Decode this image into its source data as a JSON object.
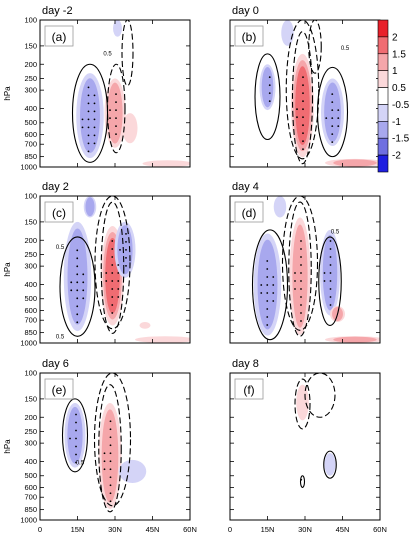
{
  "chart_data": {
    "type": "heatmap",
    "ylabel": "hPa",
    "xticks": [
      "0",
      "15N",
      "30N",
      "45N",
      "60N"
    ],
    "yticks": [
      "100",
      "150",
      "200",
      "250",
      "300",
      "400",
      "500",
      "600",
      "700",
      "850",
      "1000"
    ],
    "colorbar": {
      "levels": [
        "2",
        "1.5",
        "1",
        "0.5",
        "-0.5",
        "-1",
        "-1.5",
        "-2"
      ],
      "colors": [
        "#e8202a",
        "#f06c72",
        "#f5a6aa",
        "#fbd8da",
        "#ffffff",
        "#d4d4f7",
        "#a8a8ee",
        "#6f6fe0",
        "#1f1fe0"
      ]
    },
    "contour_label": "0.5",
    "panels": [
      {
        "title": "day -2",
        "label": "(a)",
        "blobs": [
          {
            "lat": 20,
            "p0": 230,
            "p1": 870,
            "w": 5.5,
            "v": -1.2
          },
          {
            "lat": 30,
            "p0": 250,
            "p1": 740,
            "w": 4.2,
            "v": 1.3
          },
          {
            "lat": 36,
            "p0": 430,
            "p1": 690,
            "w": 3.0,
            "v": 0.5
          },
          {
            "lat": 31,
            "p0": 100,
            "p1": 130,
            "w": 1.8,
            "v": -0.8
          },
          {
            "lat": 51,
            "p0": 900,
            "p1": 1000,
            "w": 10,
            "v": 0.6
          }
        ],
        "solid": [
          {
            "lat": 20,
            "p0": 200,
            "p1": 930,
            "w": 7
          }
        ],
        "dashed": [
          {
            "lat": 30.5,
            "p0": 200,
            "p1": 800,
            "w": 3.5
          },
          {
            "lat": 35,
            "p0": 100,
            "p1": 280,
            "w": 2.2
          }
        ],
        "labels": [
          {
            "text": "0.5",
            "lat": 27,
            "p": 175
          }
        ],
        "dots": [
          {
            "lat": 20,
            "p0": 270,
            "p1": 850,
            "w": 3
          },
          {
            "lat": 30,
            "p0": 300,
            "p1": 640,
            "w": 2
          }
        ]
      },
      {
        "title": "day 0",
        "label": "(b)",
        "blobs": [
          {
            "lat": 15,
            "p0": 200,
            "p1": 410,
            "w": 3.2,
            "v": -1.3
          },
          {
            "lat": 29,
            "p0": 170,
            "p1": 860,
            "w": 4.6,
            "v": 1.8
          },
          {
            "lat": 41,
            "p0": 250,
            "p1": 720,
            "w": 4.6,
            "v": -1.3
          },
          {
            "lat": 23,
            "p0": 100,
            "p1": 150,
            "w": 2.5,
            "v": -0.8
          },
          {
            "lat": 50,
            "p0": 880,
            "p1": 1000,
            "w": 12,
            "v": 1.0
          },
          {
            "lat": 54,
            "p0": 120,
            "p1": 160,
            "w": 2.5,
            "v": 0.4
          }
        ],
        "solid": [
          {
            "lat": 15,
            "p0": 170,
            "p1": 650,
            "w": 5
          },
          {
            "lat": 41,
            "p0": 210,
            "p1": 850,
            "w": 6
          }
        ],
        "dashed": [
          {
            "lat": 29,
            "p0": 120,
            "p1": 950,
            "w": 4
          },
          {
            "lat": 29,
            "p0": 100,
            "p1": 880,
            "w": 6.5
          },
          {
            "lat": 34,
            "p0": 100,
            "p1": 230,
            "w": 2.5
          }
        ],
        "labels": [
          {
            "text": "0.5",
            "lat": 46,
            "p": 160
          }
        ],
        "dots": [
          {
            "lat": 15,
            "p0": 230,
            "p1": 380,
            "w": 1.5
          },
          {
            "lat": 29,
            "p0": 230,
            "p1": 850,
            "w": 2.2
          },
          {
            "lat": 41,
            "p0": 300,
            "p1": 700,
            "w": 2.5
          }
        ]
      },
      {
        "title": "day 2",
        "label": "(c)",
        "blobs": [
          {
            "lat": 15,
            "p0": 150,
            "p1": 830,
            "w": 5.5,
            "v": -1.4
          },
          {
            "lat": 29,
            "p0": 160,
            "p1": 760,
            "w": 4.6,
            "v": 1.6
          },
          {
            "lat": 34,
            "p0": 150,
            "p1": 360,
            "w": 4.2,
            "v": -1.2
          },
          {
            "lat": 20,
            "p0": 100,
            "p1": 140,
            "w": 2.5,
            "v": -1.0
          },
          {
            "lat": 45,
            "p0": 140,
            "p1": 220,
            "w": 3.5,
            "v": 0.4
          },
          {
            "lat": 42,
            "p0": 720,
            "p1": 800,
            "w": 2.2,
            "v": 0.5
          },
          {
            "lat": 50,
            "p0": 900,
            "p1": 1000,
            "w": 12,
            "v": 0.7
          }
        ],
        "solid": [
          {
            "lat": 15,
            "p0": 190,
            "p1": 900,
            "w": 7
          }
        ],
        "dashed": [
          {
            "lat": 29,
            "p0": 110,
            "p1": 860,
            "w": 4.5
          },
          {
            "lat": 29,
            "p0": 100,
            "p1": 800,
            "w": 7
          }
        ],
        "labels": [
          {
            "text": "0.5",
            "lat": 8,
            "p": 230
          },
          {
            "text": "0.5",
            "lat": 8,
            "p": 930
          }
        ],
        "dots": [
          {
            "lat": 15,
            "p0": 220,
            "p1": 760,
            "w": 2.5
          },
          {
            "lat": 29,
            "p0": 190,
            "p1": 700,
            "w": 2.5
          },
          {
            "lat": 34,
            "p0": 170,
            "p1": 330,
            "w": 2
          }
        ]
      },
      {
        "title": "day 4",
        "label": "(d)",
        "blobs": [
          {
            "lat": 15,
            "p0": 180,
            "p1": 890,
            "w": 5.5,
            "v": -1.3
          },
          {
            "lat": 28,
            "p0": 140,
            "p1": 880,
            "w": 4.2,
            "v": 1.4
          },
          {
            "lat": 40,
            "p0": 170,
            "p1": 650,
            "w": 4.0,
            "v": -1.2
          },
          {
            "lat": 20,
            "p0": 100,
            "p1": 140,
            "w": 2.5,
            "v": -0.8
          },
          {
            "lat": 43,
            "p0": 560,
            "p1": 720,
            "w": 3.0,
            "v": 1.0
          },
          {
            "lat": 50,
            "p0": 900,
            "p1": 1000,
            "w": 12,
            "v": 1.0
          }
        ],
        "solid": [
          {
            "lat": 16,
            "p0": 170,
            "p1": 950,
            "w": 7
          },
          {
            "lat": 40,
            "p0": 190,
            "p1": 760,
            "w": 4.5
          }
        ],
        "dashed": [
          {
            "lat": 28,
            "p0": 110,
            "p1": 900,
            "w": 4.5
          },
          {
            "lat": 28,
            "p0": 100,
            "p1": 820,
            "w": 7
          }
        ],
        "labels": [
          {
            "text": "0.5",
            "lat": 42,
            "p": 180
          }
        ],
        "dots": [
          {
            "lat": 15,
            "p0": 260,
            "p1": 790,
            "w": 2.5
          },
          {
            "lat": 28,
            "p0": 190,
            "p1": 800,
            "w": 2
          },
          {
            "lat": 40,
            "p0": 190,
            "p1": 620,
            "w": 2.2
          }
        ]
      },
      {
        "title": "day 6",
        "label": "(e)",
        "blobs": [
          {
            "lat": 14,
            "p0": 160,
            "p1": 440,
            "w": 4.2,
            "v": -1.2
          },
          {
            "lat": 28,
            "p0": 160,
            "p1": 840,
            "w": 4.6,
            "v": 1.2
          },
          {
            "lat": 37,
            "p0": 390,
            "p1": 560,
            "w": 5.5,
            "v": -0.5
          },
          {
            "lat": 14,
            "p0": 700,
            "p1": 900,
            "w": 6,
            "v": -0.4
          },
          {
            "lat": 33,
            "p0": 880,
            "p1": 1000,
            "w": 11,
            "v": 0.4
          }
        ],
        "solid": [
          {
            "lat": 14,
            "p0": 150,
            "p1": 470,
            "w": 5
          }
        ],
        "dashed": [
          {
            "lat": 28,
            "p0": 120,
            "p1": 880,
            "w": 4.5
          },
          {
            "lat": 29,
            "p0": 100,
            "p1": 800,
            "w": 7.2
          }
        ],
        "labels": [
          {
            "text": "0.5",
            "lat": 16,
            "p": 420
          }
        ],
        "dots": [
          {
            "lat": 14,
            "p0": 180,
            "p1": 420,
            "w": 2
          },
          {
            "lat": 28,
            "p0": 200,
            "p1": 780,
            "w": 2.2
          }
        ]
      },
      {
        "title": "day 8",
        "label": "(f)",
        "blobs": [
          {
            "lat": 29,
            "p0": 120,
            "p1": 210,
            "w": 2.5,
            "v": 0.7
          },
          {
            "lat": 40,
            "p0": 350,
            "p1": 500,
            "w": 2.2,
            "v": -0.9
          },
          {
            "lat": 29,
            "p0": 480,
            "p1": 600,
            "w": 1.2,
            "v": 0.4
          },
          {
            "lat": 48,
            "p0": 920,
            "p1": 1000,
            "w": 12,
            "v": 0.4
          }
        ],
        "solid": [
          {
            "lat": 40,
            "p0": 340,
            "p1": 520,
            "w": 2.5
          },
          {
            "lat": 29,
            "p0": 500,
            "p1": 600,
            "w": 0.8
          }
        ],
        "dashed": [
          {
            "lat": 29,
            "p0": 110,
            "p1": 240,
            "w": 3
          },
          {
            "lat": 36,
            "p0": 100,
            "p1": 200,
            "w": 6
          }
        ],
        "labels": [],
        "dots": [
          {
            "lat": 40,
            "p0": 370,
            "p1": 480,
            "w": 1
          },
          {
            "lat": 29,
            "p0": 500,
            "p1": 570,
            "w": 0.5
          }
        ]
      }
    ]
  }
}
